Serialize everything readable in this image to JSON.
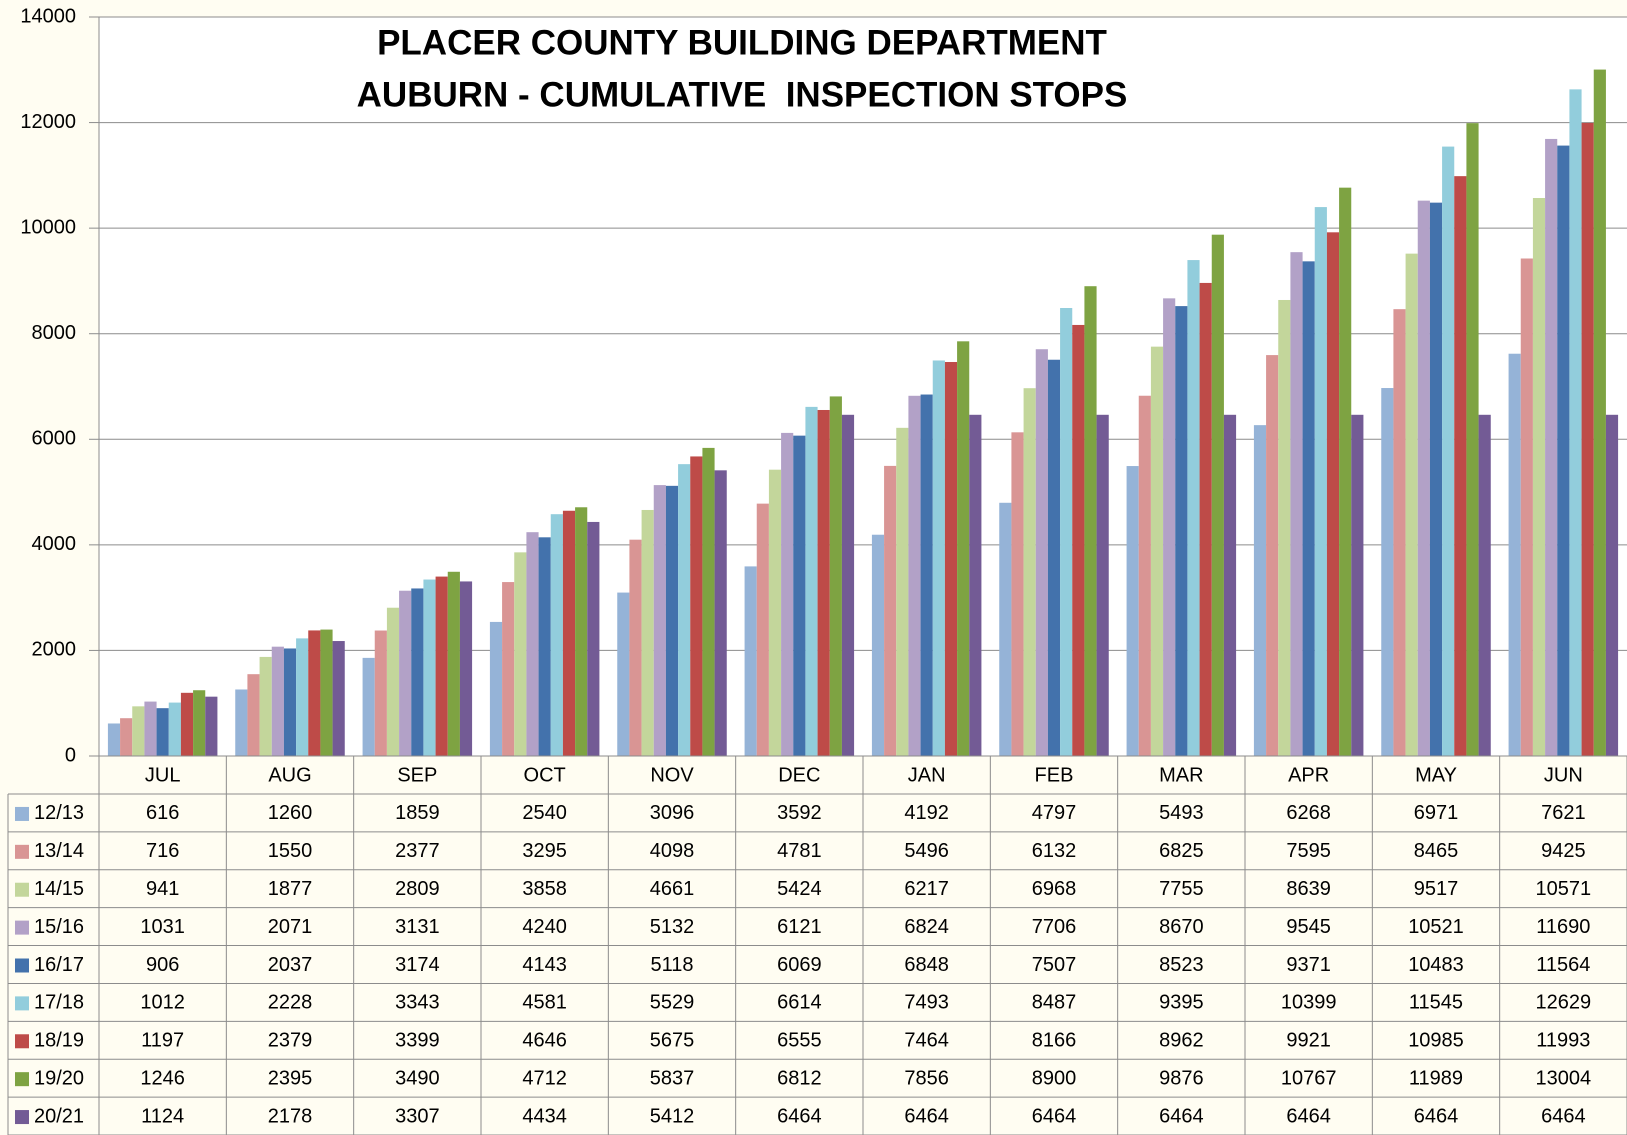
{
  "chart_data": {
    "type": "bar",
    "title": "PLACER COUNTY BUILDING DEPARTMENT",
    "subtitle": "AUBURN - CUMULATIVE  INSPECTION STOPS",
    "categories": [
      "JUL",
      "AUG",
      "SEP",
      "OCT",
      "NOV",
      "DEC",
      "JAN",
      "FEB",
      "MAR",
      "APR",
      "MAY",
      "JUN"
    ],
    "ylim": [
      0,
      14000
    ],
    "yticks": [
      0,
      2000,
      4000,
      6000,
      8000,
      10000,
      12000,
      14000
    ],
    "grid": true,
    "series": [
      {
        "name": "12/13",
        "color": "#95b3d7",
        "values": [
          616,
          1260,
          1859,
          2540,
          3096,
          3592,
          4192,
          4797,
          5493,
          6268,
          6971,
          7621
        ]
      },
      {
        "name": "13/14",
        "color": "#d99594",
        "values": [
          716,
          1550,
          2377,
          3295,
          4098,
          4781,
          5496,
          6132,
          6825,
          7595,
          8465,
          9425
        ]
      },
      {
        "name": "14/15",
        "color": "#c3d69b",
        "values": [
          941,
          1877,
          2809,
          3858,
          4661,
          5424,
          6217,
          6968,
          7755,
          8639,
          9517,
          10571
        ]
      },
      {
        "name": "15/16",
        "color": "#b2a1c7",
        "values": [
          1031,
          2071,
          3131,
          4240,
          5132,
          6121,
          6824,
          7706,
          8670,
          9545,
          10521,
          11690
        ]
      },
      {
        "name": "16/17",
        "color": "#4372ac",
        "values": [
          906,
          2037,
          3174,
          4143,
          5118,
          6069,
          6848,
          7507,
          8523,
          9371,
          10483,
          11564
        ]
      },
      {
        "name": "17/18",
        "color": "#92cddc",
        "values": [
          1012,
          2228,
          3343,
          4581,
          5529,
          6614,
          7493,
          8487,
          9395,
          10399,
          11545,
          12629
        ]
      },
      {
        "name": "18/19",
        "color": "#be4b48",
        "values": [
          1197,
          2379,
          3399,
          4646,
          5675,
          6555,
          7464,
          8166,
          8962,
          9921,
          10985,
          11993
        ]
      },
      {
        "name": "19/20",
        "color": "#7ea342",
        "values": [
          1246,
          2395,
          3490,
          4712,
          5837,
          6812,
          7856,
          8900,
          9876,
          10767,
          11989,
          13004
        ]
      },
      {
        "name": "20/21",
        "color": "#735b95",
        "values": [
          1124,
          2178,
          3307,
          4434,
          5412,
          6464,
          6464,
          6464,
          6464,
          6464,
          6464,
          6464
        ]
      }
    ]
  }
}
